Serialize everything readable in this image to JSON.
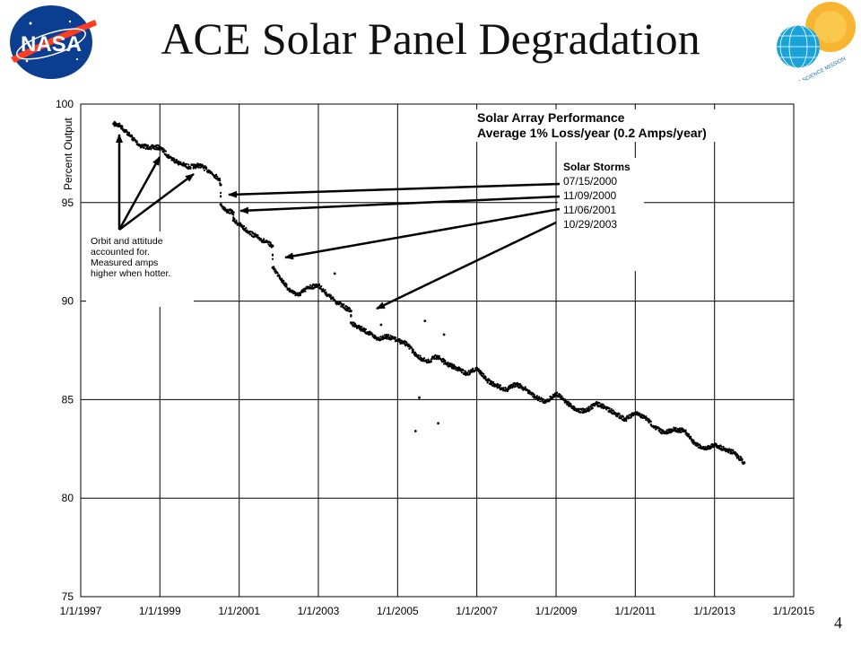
{
  "slide": {
    "title": "ACE Solar Panel Degradation",
    "page_number": "4"
  },
  "logos": {
    "left": "NASA",
    "right": "SPACE SCIENCE MISSION"
  },
  "colors": {
    "nasa_blue": "#0b3d91",
    "nasa_red": "#fc3d21",
    "sun": "#f7b531",
    "globe": "#1aa3d9",
    "points": "#000000"
  },
  "chart_data": {
    "type": "scatter",
    "title": "Solar Array Performance",
    "subtitle": "Average 1% Loss/year (0.2 Amps/year)",
    "xlabel": "",
    "ylabel": "Percent Output",
    "xlim": [
      "1997-01-01",
      "2015-01-01"
    ],
    "ylim": [
      75,
      100
    ],
    "x_ticks": [
      "1/1/1997",
      "1/1/1999",
      "1/1/2001",
      "1/1/2003",
      "1/1/2005",
      "1/1/2007",
      "1/1/2009",
      "1/1/2011",
      "1/1/2013",
      "1/1/2015"
    ],
    "y_ticks": [
      75,
      80,
      85,
      90,
      95,
      100
    ],
    "grid": true,
    "series": [
      {
        "x": [
          "1997-11-01",
          "1998-01-01",
          "1998-04-01",
          "1998-07-01",
          "1998-10-01",
          "1999-01-01",
          "1999-04-01",
          "1999-07-01",
          "1999-10-01",
          "2000-01-01",
          "2000-04-01",
          "2000-07-01",
          "2000-07-14",
          "2000-07-16",
          "2000-09-01",
          "2000-11-08",
          "2000-11-10",
          "2001-01-01",
          "2001-04-01",
          "2001-07-01",
          "2001-11-05",
          "2001-11-07",
          "2002-01-01",
          "2002-04-01",
          "2002-07-01",
          "2002-10-01",
          "2003-01-01",
          "2003-04-01",
          "2003-07-01",
          "2003-10-28",
          "2003-10-30",
          "2004-01-01",
          "2004-04-01",
          "2004-07-01",
          "2004-10-01",
          "2005-01-01",
          "2005-04-01",
          "2005-07-01",
          "2005-10-01",
          "2006-01-01",
          "2006-04-01",
          "2006-07-01",
          "2006-10-01",
          "2007-01-01",
          "2007-04-01",
          "2007-07-01",
          "2007-10-01",
          "2008-01-01",
          "2008-04-01",
          "2008-07-01",
          "2008-10-01",
          "2009-01-01",
          "2009-04-01",
          "2009-07-01",
          "2009-10-01",
          "2010-01-01",
          "2010-04-01",
          "2010-07-01",
          "2010-10-01",
          "2011-01-01",
          "2011-04-01",
          "2011-07-01",
          "2011-10-01",
          "2012-01-01",
          "2012-04-01",
          "2012-07-01",
          "2012-10-01",
          "2013-01-01",
          "2013-04-01",
          "2013-07-01",
          "2013-10-01"
        ],
        "y": [
          99.0,
          98.9,
          98.4,
          97.9,
          97.8,
          97.8,
          97.3,
          97.0,
          96.8,
          96.9,
          96.6,
          96.2,
          95.9,
          94.9,
          94.6,
          94.5,
          94.1,
          93.9,
          93.5,
          93.2,
          92.8,
          91.7,
          91.3,
          90.6,
          90.3,
          90.7,
          90.8,
          90.3,
          89.9,
          89.5,
          88.9,
          88.7,
          88.4,
          88.1,
          88.2,
          88.0,
          87.8,
          87.2,
          86.9,
          87.2,
          86.8,
          86.6,
          86.3,
          86.6,
          86.0,
          85.7,
          85.5,
          85.8,
          85.5,
          85.1,
          84.9,
          85.3,
          84.9,
          84.5,
          84.4,
          84.8,
          84.6,
          84.3,
          84.0,
          84.3,
          84.1,
          83.6,
          83.3,
          83.5,
          83.4,
          82.8,
          82.5,
          82.7,
          82.5,
          82.3,
          81.8
        ]
      }
    ],
    "outliers": {
      "x": [
        "2005-06-15",
        "2005-07-20",
        "2005-09-10",
        "2006-01-10",
        "2006-03-05",
        "2004-08-01",
        "2003-06-01",
        "2002-12-01"
      ],
      "y": [
        83.4,
        85.1,
        89.0,
        83.8,
        88.3,
        88.8,
        91.4,
        90.8
      ]
    },
    "annotations": {
      "storms_title": "Solar Storms",
      "storms": [
        "07/15/2000",
        "11/09/2000",
        "11/06/2001",
        "10/29/2003"
      ],
      "orbit_note": [
        "Orbit and attitude",
        "accounted for.",
        "Measured amps",
        "higher when hotter."
      ]
    }
  }
}
